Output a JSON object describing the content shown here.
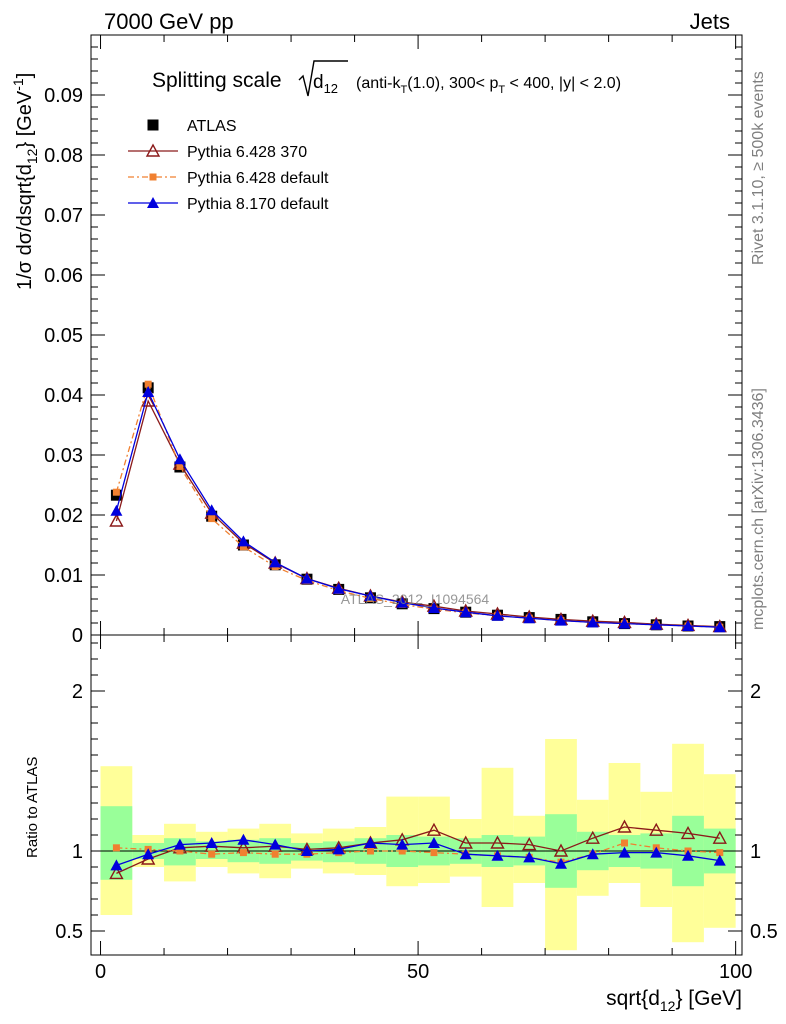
{
  "header": {
    "left": "7000 GeV pp",
    "right": "Jets"
  },
  "side_labels": {
    "rivet": "Rivet 3.1.10, ≥ 500k events",
    "mcplots": "mcplots.cern.ch [arXiv:1306.3436]"
  },
  "watermark": "ATLAS_2012_I1094564",
  "title": {
    "main": "Splitting scale",
    "sqrt_arg": "d",
    "sqrt_sub": "12",
    "cond_a": "(anti-k",
    "cond_a_sub": "T",
    "cond_b": "(1.0), 300< p",
    "cond_b_sub": "T",
    "cond_c": " < 400, |y| < 2.0)"
  },
  "ylabel_top": {
    "p1": "1/σ dσ/dsqrt{d",
    "sub": "12",
    "p2": "} [GeV",
    "sup": "-1",
    "p3": "]"
  },
  "ylabel_bottom": "Ratio to ATLAS",
  "xlabel": {
    "p1": "sqrt{d",
    "sub": "12",
    "p2": "} [GeV]"
  },
  "colors": {
    "atlas": "#000000",
    "py6_370": "#8b1a1a",
    "py6_default": "#f08030",
    "py8_default": "#0000dd",
    "band_inner": "#99ff99",
    "band_outer": "#ffff99"
  },
  "chart_data": [
    {
      "type": "line",
      "panel": "main",
      "x": [
        2.5,
        7.5,
        12.5,
        17.5,
        22.5,
        27.5,
        32.5,
        37.5,
        42.5,
        47.5,
        52.5,
        57.5,
        62.5,
        67.5,
        72.5,
        77.5,
        82.5,
        87.5,
        92.5,
        97.5
      ],
      "xlim": [
        -1.5,
        101
      ],
      "ylim": [
        0,
        0.1
      ],
      "xticks": [
        0,
        50,
        100
      ],
      "yticks": [
        0,
        0.01,
        0.02,
        0.03,
        0.04,
        0.05,
        0.06,
        0.07,
        0.08,
        0.09
      ],
      "ytick_labels": [
        "0",
        "0.01",
        "0.02",
        "0.03",
        "0.04",
        "0.05",
        "0.06",
        "0.07",
        "0.08",
        "0.09"
      ],
      "series": [
        {
          "name": "ATLAS",
          "marker": "square",
          "values": [
            0.0233,
            0.0412,
            0.028,
            0.0198,
            0.015,
            0.0117,
            0.0093,
            0.0076,
            0.0062,
            0.0052,
            0.0044,
            0.0038,
            0.0033,
            0.0029,
            0.0026,
            0.0022,
            0.0019,
            0.0017,
            0.0015,
            0.0014
          ]
        },
        {
          "name": "Pythia 6.428 370",
          "marker": "open-triangle",
          "values": [
            0.019,
            0.039,
            0.0285,
            0.0203,
            0.0153,
            0.012,
            0.0094,
            0.0078,
            0.0065,
            0.0055,
            0.0048,
            0.004,
            0.0035,
            0.003,
            0.0026,
            0.0023,
            0.0021,
            0.0018,
            0.0016,
            0.0014
          ]
        },
        {
          "name": "Pythia 6.428 default",
          "marker": "small-square",
          "dashed": true,
          "values": [
            0.0238,
            0.0418,
            0.0281,
            0.0194,
            0.0147,
            0.0114,
            0.0091,
            0.0074,
            0.0061,
            0.0051,
            0.0043,
            0.0037,
            0.0032,
            0.0028,
            0.0024,
            0.0021,
            0.0019,
            0.0017,
            0.0015,
            0.0013
          ]
        },
        {
          "name": "Pythia 8.170 default",
          "marker": "filled-triangle",
          "values": [
            0.0207,
            0.0405,
            0.0293,
            0.0208,
            0.0156,
            0.0121,
            0.0094,
            0.0077,
            0.0065,
            0.0054,
            0.0045,
            0.0038,
            0.0032,
            0.0028,
            0.0024,
            0.0021,
            0.0019,
            0.0017,
            0.0015,
            0.0013
          ]
        }
      ]
    },
    {
      "type": "line",
      "panel": "ratio",
      "x": [
        2.5,
        7.5,
        12.5,
        17.5,
        22.5,
        27.5,
        32.5,
        37.5,
        42.5,
        47.5,
        52.5,
        57.5,
        62.5,
        67.5,
        72.5,
        77.5,
        82.5,
        87.5,
        92.5,
        97.5
      ],
      "xlim": [
        -1.5,
        101
      ],
      "ylim": [
        0.35,
        2.35
      ],
      "yticks": [
        0.5,
        1,
        2
      ],
      "ytick_labels": [
        "0.5",
        "1",
        "2"
      ],
      "ylabel": "Ratio to ATLAS",
      "bands": {
        "inner_lo": [
          0.82,
          0.95,
          0.91,
          0.95,
          0.93,
          0.92,
          0.94,
          0.93,
          0.92,
          0.9,
          0.91,
          0.92,
          0.9,
          0.91,
          0.77,
          0.88,
          0.9,
          0.89,
          0.78,
          0.86
        ],
        "inner_hi": [
          1.28,
          1.05,
          1.08,
          1.06,
          1.07,
          1.08,
          1.05,
          1.06,
          1.08,
          1.1,
          1.09,
          1.08,
          1.1,
          1.09,
          1.23,
          1.12,
          1.1,
          1.11,
          1.22,
          1.14
        ],
        "outer_lo": [
          0.6,
          0.9,
          0.81,
          0.9,
          0.86,
          0.83,
          0.89,
          0.86,
          0.85,
          0.78,
          0.8,
          0.84,
          0.65,
          0.8,
          0.38,
          0.72,
          0.8,
          0.65,
          0.43,
          0.52
        ],
        "outer_hi": [
          1.53,
          1.1,
          1.17,
          1.12,
          1.14,
          1.17,
          1.11,
          1.14,
          1.15,
          1.34,
          1.34,
          1.2,
          1.52,
          1.22,
          1.7,
          1.32,
          1.55,
          1.37,
          1.67,
          1.48
        ]
      },
      "series": [
        {
          "name": "Pythia 6.428 370",
          "values": [
            0.86,
            0.95,
            1.02,
            1.03,
            1.02,
            1.03,
            1.01,
            1.02,
            1.05,
            1.07,
            1.13,
            1.05,
            1.05,
            1.04,
            1.0,
            1.08,
            1.15,
            1.13,
            1.11,
            1.08
          ]
        },
        {
          "name": "Pythia 6.428 default",
          "values": [
            1.02,
            1.01,
            1.0,
            0.98,
            0.99,
            0.98,
            0.98,
            0.99,
            1.0,
            1.0,
            0.99,
            0.98,
            0.97,
            0.96,
            0.93,
            0.98,
            1.05,
            1.02,
            1.0,
            0.99
          ]
        },
        {
          "name": "Pythia 8.170 default",
          "values": [
            0.91,
            0.98,
            1.04,
            1.05,
            1.07,
            1.04,
            1.0,
            1.01,
            1.05,
            1.04,
            1.05,
            0.98,
            0.97,
            0.96,
            0.92,
            0.98,
            0.99,
            0.99,
            0.97,
            0.94
          ]
        }
      ]
    }
  ],
  "xtick_labels": [
    "0",
    "50",
    "100"
  ]
}
